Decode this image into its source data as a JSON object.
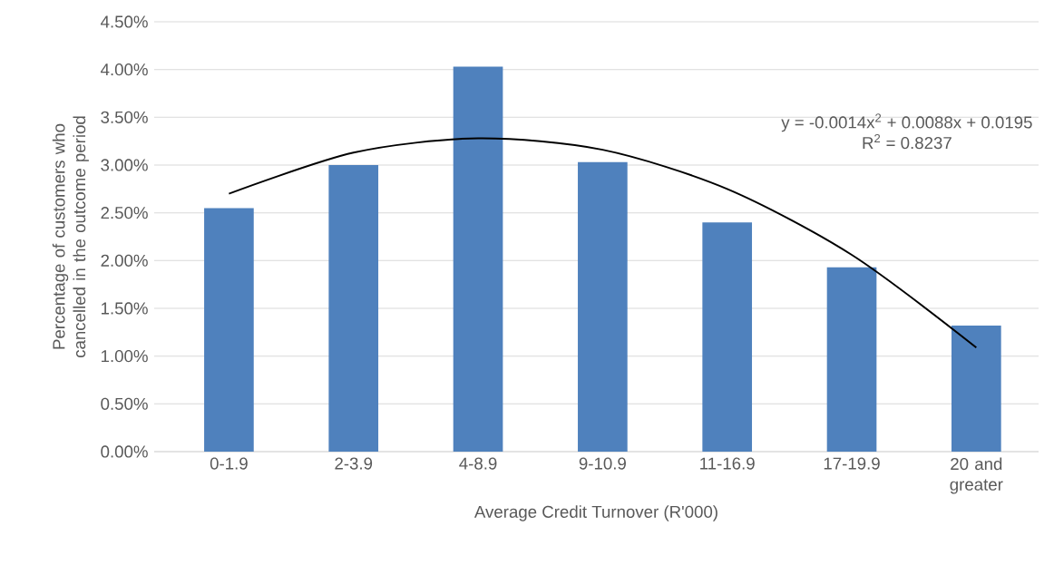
{
  "chart_data": {
    "type": "bar",
    "xlabel": "Average Credit Turnover (R'000)",
    "ylabel": "Percentage of customers who cancelled in the outcome period",
    "categories": [
      "0-1.9",
      "2-3.9",
      "4-8.9",
      "9-10.9",
      "11-16.9",
      "17-19.9",
      "20 and greater"
    ],
    "series": [
      {
        "color": "#4f81bd",
        "values": [
          2.55,
          3.0,
          4.03,
          3.03,
          2.4,
          1.93,
          1.32
        ]
      },
      {
        "type": "line",
        "color": "#000000",
        "values": [
          2.7,
          3.13,
          3.28,
          3.16,
          2.75,
          2.06,
          1.09
        ]
      }
    ],
    "ylim": [
      0,
      4.5
    ],
    "yticks": [
      {
        "value": 0,
        "label": "0.00%"
      },
      {
        "value": 0.5,
        "label": "0.50%"
      },
      {
        "value": 1,
        "label": "1.00%"
      },
      {
        "value": 1.5,
        "label": "1.50%"
      },
      {
        "value": 2,
        "label": "2.00%"
      },
      {
        "value": 2.5,
        "label": "2.50%"
      },
      {
        "value": 3,
        "label": "3.00%"
      },
      {
        "value": 3.5,
        "label": "3.50%"
      },
      {
        "value": 4,
        "label": "4.00%"
      },
      {
        "value": 4.5,
        "label": "4.50%"
      }
    ],
    "grid": "y",
    "annotations": [
      "y = -0.0014x$^{2}$ + 0.0088x + 0.0195",
      "R$^{2}$ = 0.8237"
    ]
  }
}
